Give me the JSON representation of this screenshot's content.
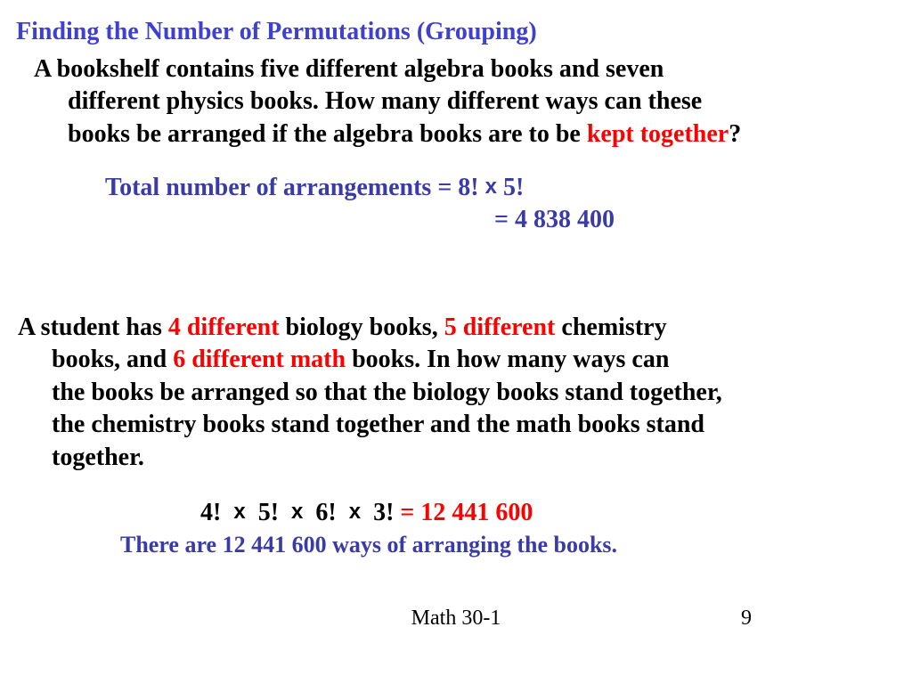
{
  "title": "Finding the Number of Permutations (Grouping)",
  "problem1": {
    "line1": "A bookshelf contains five different algebra books and seven",
    "line2a": "different physics books.  How many different ways can these",
    "line3a": "books be arranged if the algebra books are to be ",
    "line3b": "kept together",
    "line3c": "?"
  },
  "solution1": {
    "text_a": "Total number of arrangements = 8! ",
    "text_x": "x",
    "text_b": " 5!",
    "line2": "= 4 838 400"
  },
  "problem2": {
    "p1a": "A student has ",
    "p1b": "4 different",
    "p1c": " biology books, ",
    "p1d": "5 different",
    "p1e": " chemistry",
    "p2a": "books, and ",
    "p2b": "6 different math",
    "p2c": " books.  In how many ways can",
    "p3": "the books be arranged so that the biology books stand together,",
    "p4": "the chemistry books stand together and the math books stand",
    "p5": "together."
  },
  "solution2": {
    "f1": "4!",
    "f2": "5!",
    "f3": "6!",
    "f4": "3!",
    "x": "x",
    "result": "  = 12 441 600"
  },
  "conclusion": "There are 12 441 600 ways of arranging the books.",
  "footer": {
    "center": "Math 30-1",
    "page": "9"
  },
  "colors": {
    "title_blue": "#4040d0",
    "body_black": "#000000",
    "highlight_red": "#ff0000",
    "solution_blue": "#3b3ba8",
    "background": "#ffffff"
  },
  "fontsizes": {
    "title": 28,
    "body": 28,
    "conclusion": 26,
    "footer": 24
  }
}
